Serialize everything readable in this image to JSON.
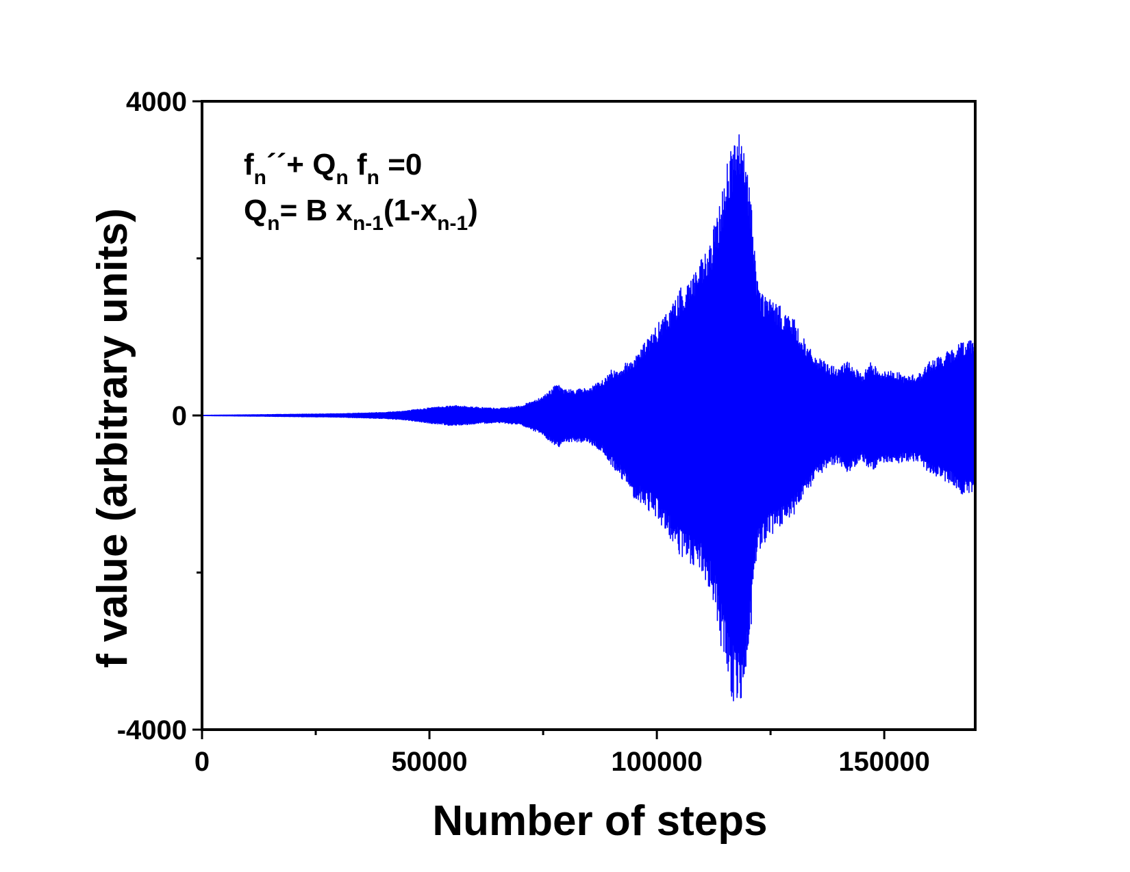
{
  "chart_data": {
    "type": "area",
    "title": "",
    "xlabel": "Number of steps",
    "ylabel": "f value (arbitrary units)",
    "xlim": [
      0,
      170000
    ],
    "ylim": [
      -4000,
      4000
    ],
    "grid": false,
    "legend": "none",
    "xticks": [
      {
        "value": 0,
        "label": "0"
      },
      {
        "value": 50000,
        "label": "50000"
      },
      {
        "value": 100000,
        "label": "100000"
      },
      {
        "value": 150000,
        "label": "150000"
      }
    ],
    "x_minor_ticks": [
      25000,
      75000,
      125000
    ],
    "yticks": [
      {
        "value": 4000,
        "label": "4000"
      },
      {
        "value": 0,
        "label": "0"
      },
      {
        "value": -4000,
        "label": "-4000"
      }
    ],
    "y_minor_ticks": [
      2000,
      -2000
    ],
    "annotation": {
      "line1": {
        "f": "f",
        "sub1": "n",
        "prime": "´´+ Q",
        "sub2": "n",
        "mid": " f",
        "sub3": "n",
        "tail": " =0"
      },
      "line2": {
        "q": "Q",
        "sub1": "n",
        "mid": "= B x",
        "sub2": "n-1",
        "mid2": "(1-x",
        "sub3": "n-1",
        "tail": ")"
      }
    },
    "series": [
      {
        "color": "#0000ff",
        "envelope_x": [
          0,
          10000,
          20000,
          30000,
          40000,
          45000,
          50000,
          55000,
          60000,
          65000,
          70000,
          75000,
          78000,
          80000,
          85000,
          88000,
          90000,
          92000,
          95000,
          100000,
          103000,
          105000,
          108000,
          110000,
          112000,
          114000,
          115000,
          116000,
          117000,
          118000,
          119000,
          120000,
          121000,
          122000,
          123000,
          125000,
          127000,
          130000,
          133000,
          135000,
          138000,
          140000,
          142000,
          145000,
          147000,
          150000,
          152000,
          155000,
          158000,
          160000,
          162000,
          165000,
          167000,
          170000
        ],
        "envelope_upper": [
          2,
          8,
          15,
          22,
          40,
          60,
          100,
          130,
          110,
          90,
          120,
          250,
          400,
          330,
          350,
          450,
          580,
          620,
          750,
          1150,
          1400,
          1600,
          1850,
          2000,
          2250,
          2800,
          3150,
          3450,
          3550,
          3650,
          3400,
          3200,
          2600,
          1800,
          1600,
          1500,
          1400,
          1250,
          900,
          750,
          650,
          600,
          700,
          520,
          680,
          560,
          580,
          500,
          550,
          700,
          750,
          850,
          950,
          1000
        ],
        "envelope_lower": [
          -2,
          -8,
          -15,
          -22,
          -40,
          -60,
          -100,
          -130,
          -110,
          -90,
          -120,
          -250,
          -420,
          -330,
          -350,
          -470,
          -650,
          -780,
          -1050,
          -1300,
          -1600,
          -1800,
          -1950,
          -2050,
          -2300,
          -2900,
          -3300,
          -3550,
          -3700,
          -3750,
          -3500,
          -3300,
          -2600,
          -1800,
          -1700,
          -1550,
          -1450,
          -1300,
          -1000,
          -800,
          -650,
          -600,
          -750,
          -550,
          -720,
          -600,
          -620,
          -580,
          -600,
          -750,
          -800,
          -900,
          -1000,
          -1050
        ]
      }
    ]
  }
}
